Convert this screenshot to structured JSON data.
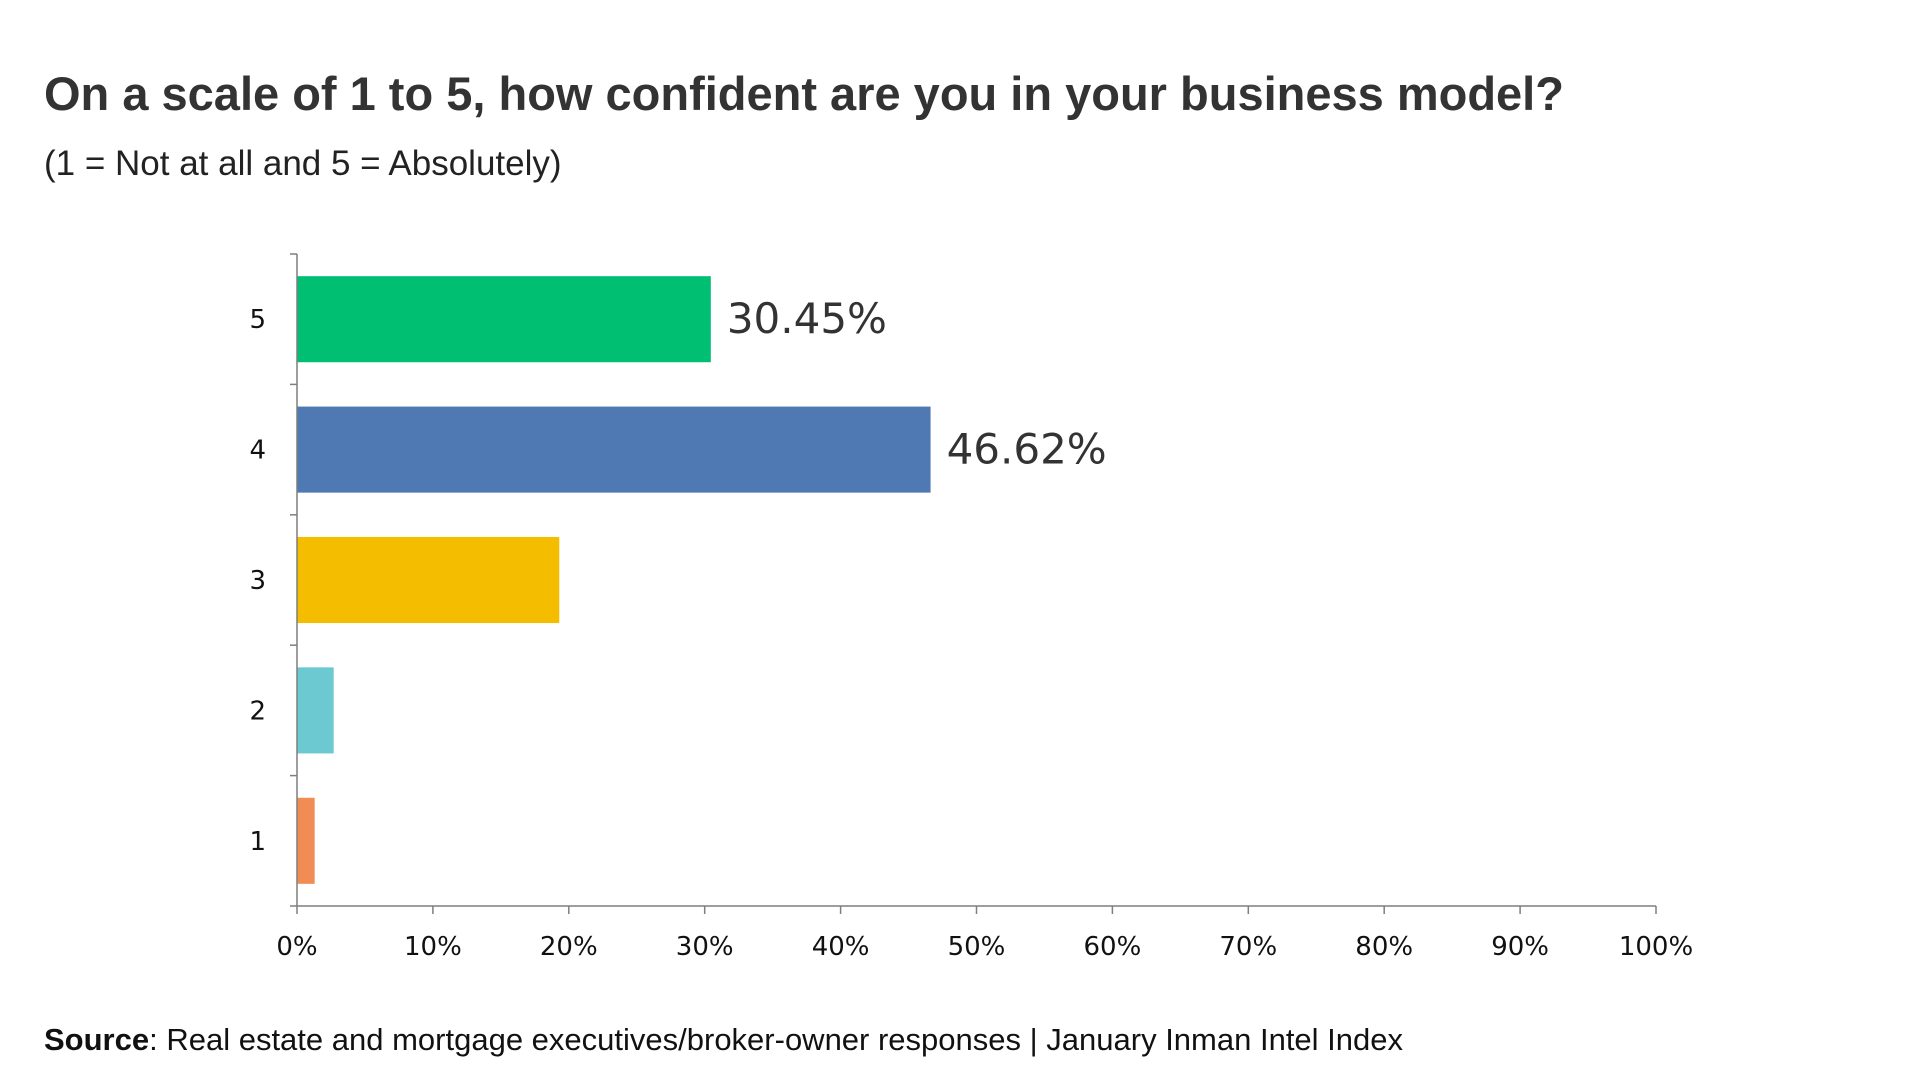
{
  "title": "On a scale of 1 to 5, how confident are you in your business model?",
  "subtitle": "(1 = Not at all and 5 = Absolutely)",
  "source": {
    "label": "Source",
    "text": ": Real estate and mortgage executives/broker-owner responses | January Inman Intel Index"
  },
  "chart_data": {
    "type": "bar",
    "orientation": "horizontal",
    "categories": [
      "5",
      "4",
      "3",
      "2",
      "1"
    ],
    "values": [
      30.45,
      46.62,
      19.3,
      2.7,
      1.3
    ],
    "data_labels": [
      "30.45%",
      "46.62%",
      "",
      "",
      ""
    ],
    "colors": [
      "#00bf72",
      "#4e79b2",
      "#f5bd00",
      "#6cc8d1",
      "#f28c55"
    ],
    "xlim": [
      0,
      100
    ],
    "x_ticks": [
      0,
      10,
      20,
      30,
      40,
      50,
      60,
      70,
      80,
      90,
      100
    ],
    "x_tick_labels": [
      "0%",
      "10%",
      "20%",
      "30%",
      "40%",
      "50%",
      "60%",
      "70%",
      "80%",
      "90%",
      "100%"
    ],
    "grid": false,
    "legend": false
  }
}
